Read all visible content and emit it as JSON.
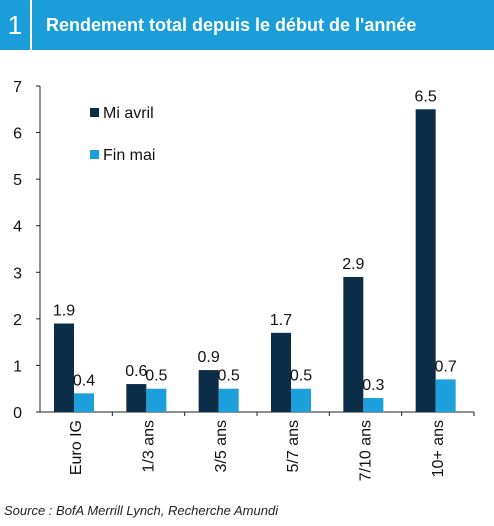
{
  "header": {
    "number": "1",
    "title": "Rendement total depuis le début de l'année"
  },
  "source": "Source : BofA Merrill Lynch, Recherche Amundi",
  "colors": {
    "header_bg": "#1a9dd9",
    "series_mi_avril": "#0c2d48",
    "series_fin_mai": "#1c9fdb"
  },
  "chart_data": {
    "type": "bar",
    "categories": [
      "Euro IG",
      "1/3 ans",
      "3/5 ans",
      "5/7 ans",
      "7/10 ans",
      "10+ ans"
    ],
    "series": [
      {
        "name": "Mi avril",
        "values": [
          1.9,
          0.6,
          0.9,
          1.7,
          2.9,
          6.5
        ],
        "labels": [
          "1.9",
          "0.6",
          "0.9",
          "1.7",
          "2.9",
          "6.5"
        ]
      },
      {
        "name": "Fin mai",
        "values": [
          0.4,
          0.5,
          0.5,
          0.5,
          0.3,
          0.7
        ],
        "labels": [
          "0.4",
          "0.5",
          "0.5",
          "0.5",
          "0.3",
          "0.7"
        ]
      }
    ],
    "ylim": [
      0,
      7
    ],
    "yticks": [
      0,
      1,
      2,
      3,
      4,
      5,
      6,
      7
    ],
    "grid": false,
    "legend_position": "top-left"
  }
}
